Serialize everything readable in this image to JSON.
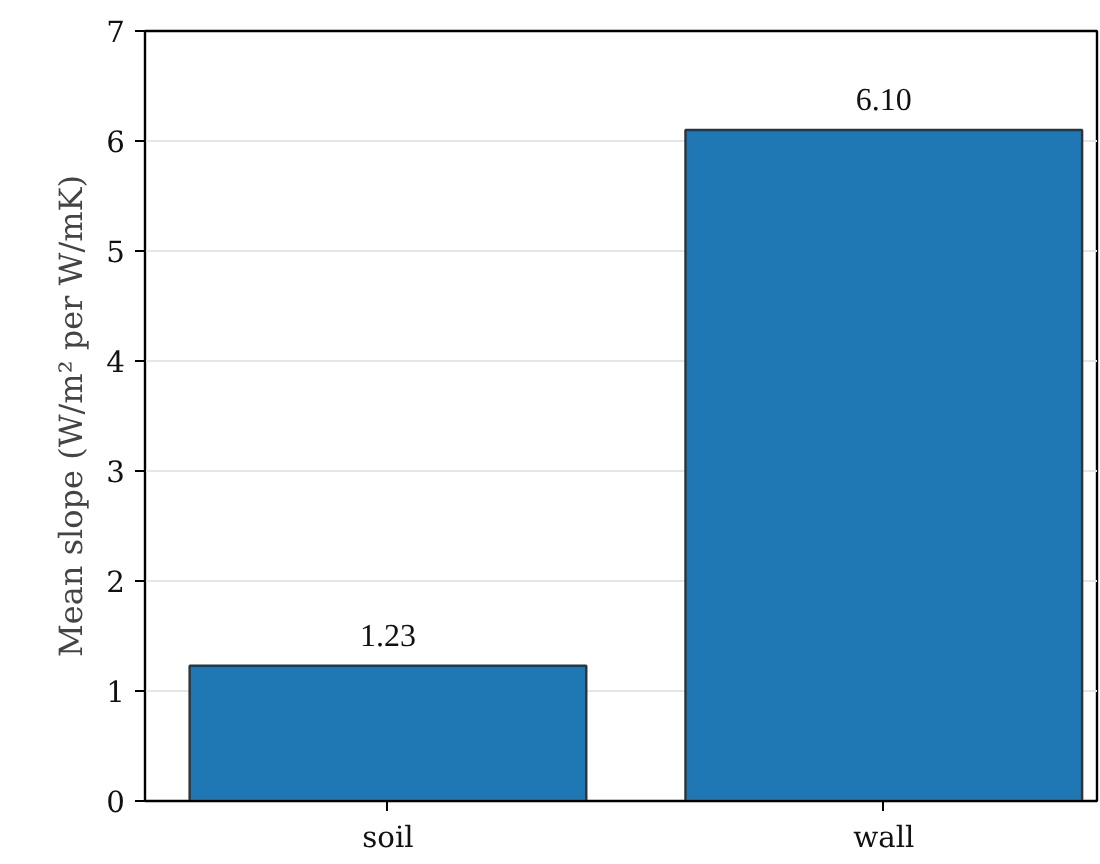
{
  "chart_data": {
    "type": "bar",
    "ylabel": "Mean slope (W/m² per W/mK)",
    "categories": [
      "soil",
      "wall"
    ],
    "values": [
      1.23,
      6.1
    ],
    "color": "#1f77b4",
    "value_labels": [
      "1.23",
      "6.10"
    ],
    "ylim": [
      0,
      7
    ],
    "yticks": [
      0,
      1,
      2,
      3,
      4,
      5,
      6,
      7
    ],
    "grid": "y"
  }
}
